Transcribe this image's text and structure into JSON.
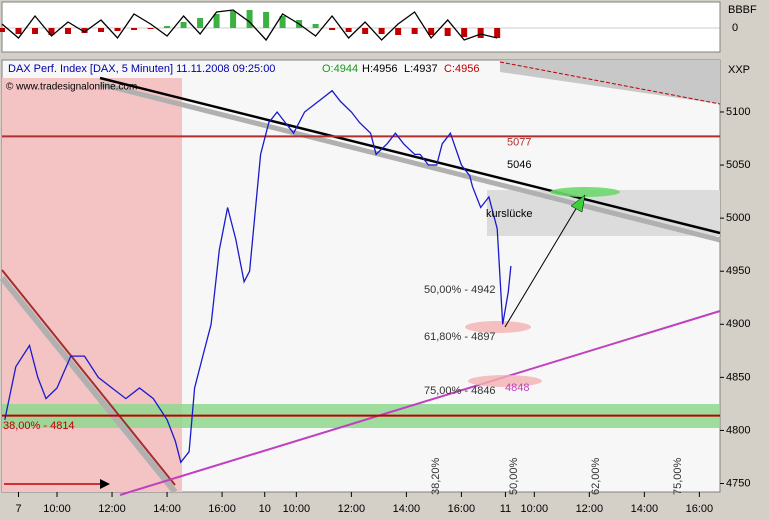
{
  "chart_data": [
    {
      "type": "line",
      "title": "DAX Perf. Index [DAX, 5 Minuten] 11.11.2008 09:25:00",
      "ohlc": [
        "O:4944",
        "H:4956",
        "L:4937",
        "C:4956"
      ],
      "source": "© www.tradesignalonline.com",
      "y_label": "XXP",
      "x": [
        0.1,
        0.5,
        1,
        1.3,
        1.6,
        2,
        2.5,
        3,
        3.5,
        4,
        4.5,
        5,
        5.5,
        6,
        6.3,
        6.5,
        6.8,
        7,
        7.3,
        7.6,
        7.9,
        8.2,
        8.5,
        8.8,
        9,
        9.4,
        9.7,
        10,
        10.3,
        10.6,
        11,
        11.5,
        12,
        12.3,
        12.7,
        13,
        13.4,
        13.6,
        14,
        14.3,
        14.6,
        15,
        15.2,
        15.5,
        15.8,
        16,
        16.3,
        16.7,
        17,
        17.1,
        17.4,
        17.7,
        18,
        18.2,
        18.4,
        18.5
      ],
      "series": [
        {
          "name": "DAX",
          "color": "#1a1acc",
          "values": [
            4810,
            4860,
            4880,
            4850,
            4830,
            4840,
            4870,
            4870,
            4850,
            4840,
            4830,
            4840,
            4830,
            4810,
            4790,
            4770,
            4780,
            4840,
            4870,
            4900,
            4970,
            5010,
            4980,
            4940,
            4950,
            5060,
            5090,
            5100,
            5090,
            5080,
            5100,
            5110,
            5120,
            5110,
            5100,
            5090,
            5080,
            5060,
            5070,
            5080,
            5070,
            5060,
            5060,
            5050,
            5050,
            5070,
            5080,
            5050,
            5040,
            5030,
            5010,
            5020,
            4990,
            4900,
            4930,
            4955
          ]
        }
      ],
      "xlim": [
        0,
        26.1
      ],
      "xticks": [
        {
          "value": 0.6,
          "label": "7"
        },
        {
          "value": 2,
          "label": "10:00"
        },
        {
          "value": 4,
          "label": "12:00"
        },
        {
          "value": 6,
          "label": "14:00"
        },
        {
          "value": 8,
          "label": "16:00"
        },
        {
          "value": 9.55,
          "label": "10"
        },
        {
          "value": 10.7,
          "label": "10:00"
        },
        {
          "value": 12.7,
          "label": "12:00"
        },
        {
          "value": 14.7,
          "label": "14:00"
        },
        {
          "value": 16.7,
          "label": "16:00"
        },
        {
          "value": 18.3,
          "label": "11"
        },
        {
          "value": 19.35,
          "label": "10:00"
        },
        {
          "value": 21.35,
          "label": "12:00"
        },
        {
          "value": 23.35,
          "label": "14:00"
        },
        {
          "value": 25.35,
          "label": "16:00"
        }
      ],
      "ylim": [
        4742,
        5132
      ],
      "yticks": [
        4750,
        4800,
        4850,
        4900,
        4950,
        5000,
        5050,
        5100
      ],
      "levels": [
        5077,
        4814
      ],
      "level_colors": [
        "#b03030",
        "#c00000"
      ],
      "annotations": [
        "5046",
        "kurslücke",
        "50,00% - 4942",
        "61,80% - 4897",
        "75,00% - 4846",
        "4848",
        "38,00% - 4814",
        "38,20%",
        "50,00%",
        "62,00%",
        "75,00%"
      ]
    },
    {
      "type": "oscillator",
      "title": "BBBF",
      "x": [
        0,
        0.6,
        1.2,
        1.8,
        2.4,
        3,
        3.6,
        4.2,
        4.8,
        5.4,
        6,
        6.6,
        7.2,
        7.8,
        8.4,
        9,
        9.6,
        10.2,
        10.8,
        11.4,
        12,
        12.6,
        13.2,
        13.8,
        14.4,
        15,
        15.6,
        16.2,
        16.8,
        17.4,
        18
      ],
      "bars": [
        -0.2,
        -0.3,
        -0.3,
        -0.35,
        -0.3,
        -0.25,
        -0.2,
        -0.15,
        -0.1,
        -0.05,
        0.1,
        0.3,
        0.5,
        0.7,
        0.85,
        0.9,
        0.8,
        0.6,
        0.4,
        0.2,
        -0.1,
        -0.2,
        -0.3,
        -0.3,
        -0.35,
        -0.3,
        -0.35,
        -0.4,
        -0.45,
        -0.5,
        -0.5
      ],
      "line": [
        0.2,
        -0.5,
        0.6,
        -0.4,
        0.3,
        -0.2,
        0.4,
        -0.5,
        0.7,
        0.2,
        -0.4,
        0.6,
        -0.3,
        0.8,
        0.9,
        0.3,
        -0.6,
        0.7,
        0.2,
        -0.4,
        0.6,
        -0.5,
        0.3,
        -0.6,
        0.2,
        0.8,
        -0.5,
        0.4,
        -0.6,
        -0.3,
        -0.5
      ],
      "positive_color": "#3cb043",
      "negative_color": "#c00000",
      "line_color": "#000000",
      "ylim": [
        -1.2,
        1.2
      ],
      "yticks": [
        0
      ]
    }
  ]
}
